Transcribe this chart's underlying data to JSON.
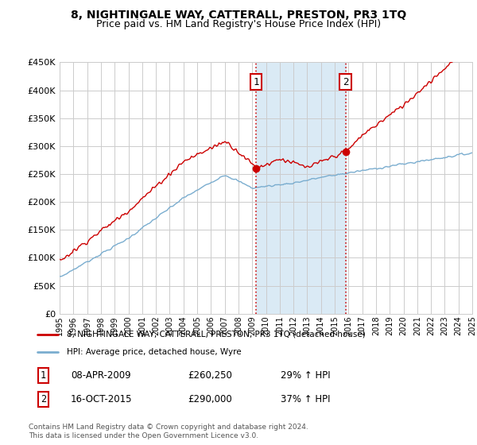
{
  "title": "8, NIGHTINGALE WAY, CATTERALL, PRESTON, PR3 1TQ",
  "subtitle": "Price paid vs. HM Land Registry's House Price Index (HPI)",
  "legend_line1": "8, NIGHTINGALE WAY, CATTERALL, PRESTON, PR3 1TQ (detached house)",
  "legend_line2": "HPI: Average price, detached house, Wyre",
  "annotation1_label": "1",
  "annotation1_date": "08-APR-2009",
  "annotation1_price": "£260,250",
  "annotation1_hpi": "29% ↑ HPI",
  "annotation2_label": "2",
  "annotation2_date": "16-OCT-2015",
  "annotation2_price": "£290,000",
  "annotation2_hpi": "37% ↑ HPI",
  "footer": "Contains HM Land Registry data © Crown copyright and database right 2024.\nThis data is licensed under the Open Government Licence v3.0.",
  "sale1_x": 2009.27,
  "sale1_y": 260250,
  "sale2_x": 2015.79,
  "sale2_y": 290000,
  "ylim": [
    0,
    450000
  ],
  "xlim": [
    1995,
    2025
  ],
  "red_color": "#cc0000",
  "blue_color": "#7aadcf",
  "shade_color": "#daeaf5",
  "grid_color": "#cccccc",
  "bg_color": "#ffffff"
}
